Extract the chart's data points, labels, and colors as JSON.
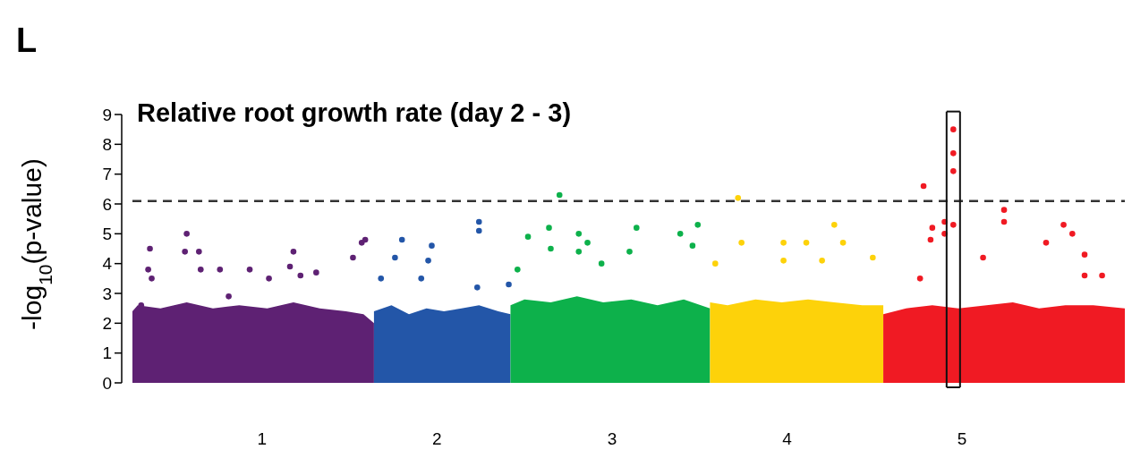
{
  "chart_data": {
    "type": "scatter",
    "title": "Relative root growth rate (day 2 - 3)",
    "ylabel": "-log$_{10}$(p-value)",
    "annotations": [
      "L"
    ],
    "xlim": [
      0.26,
      5.93
    ],
    "xticks": [
      1,
      2,
      3,
      4,
      5
    ],
    "ylim": [
      0,
      9
    ],
    "yticks": [
      0,
      1,
      2,
      3,
      4,
      5,
      6,
      7,
      8,
      9
    ],
    "marker": "circle",
    "ref_lines": [
      {
        "axis": "y",
        "value": 6.1,
        "color": "#333333",
        "line_style": "dashed"
      }
    ],
    "series": [
      {
        "type": "area",
        "marker": "none",
        "color": "#5e2173",
        "x": [
          0.26,
          0.29,
          0.42,
          0.57,
          0.72,
          0.87,
          1.03,
          1.18,
          1.33,
          1.48,
          1.58,
          1.64
        ],
        "values": [
          2.4,
          2.6,
          2.5,
          2.7,
          2.5,
          2.6,
          2.5,
          2.7,
          2.5,
          2.4,
          2.3,
          2.0
        ]
      },
      {
        "type": "area",
        "marker": "none",
        "color": "#2356a8",
        "x": [
          1.64,
          1.74,
          1.84,
          1.94,
          2.04,
          2.14,
          2.24,
          2.35,
          2.42
        ],
        "values": [
          2.4,
          2.6,
          2.3,
          2.5,
          2.4,
          2.5,
          2.6,
          2.4,
          2.3
        ]
      },
      {
        "type": "area",
        "marker": "none",
        "color": "#0db14b",
        "x": [
          2.42,
          2.5,
          2.65,
          2.8,
          2.95,
          3.11,
          3.26,
          3.41,
          3.56
        ],
        "values": [
          2.6,
          2.8,
          2.7,
          2.9,
          2.7,
          2.8,
          2.6,
          2.8,
          2.5
        ]
      },
      {
        "type": "area",
        "marker": "none",
        "color": "#fdd20a",
        "x": [
          3.56,
          3.66,
          3.82,
          3.97,
          4.12,
          4.27,
          4.43,
          4.55
        ],
        "values": [
          2.7,
          2.6,
          2.8,
          2.7,
          2.8,
          2.7,
          2.6,
          2.6
        ]
      },
      {
        "type": "area",
        "marker": "none",
        "color": "#f01a23",
        "x": [
          4.55,
          4.68,
          4.83,
          4.98,
          5.14,
          5.29,
          5.44,
          5.59,
          5.75,
          5.93
        ],
        "values": [
          2.3,
          2.5,
          2.6,
          2.5,
          2.6,
          2.7,
          2.5,
          2.6,
          2.6,
          2.5
        ]
      },
      {
        "color": "#5e2173",
        "x": [
          0.31,
          0.36,
          0.35,
          0.37,
          0.57,
          0.56,
          0.64,
          0.65,
          0.76,
          0.93,
          1.18,
          1.16,
          1.22,
          1.52,
          1.57,
          1.59,
          1.31,
          1.04,
          0.81
        ],
        "values": [
          2.6,
          4.5,
          3.8,
          3.5,
          5.0,
          4.4,
          4.4,
          3.8,
          3.8,
          3.8,
          4.4,
          3.9,
          3.6,
          4.2,
          4.7,
          4.8,
          3.7,
          3.5,
          2.9
        ]
      },
      {
        "color": "#2356a8",
        "x": [
          1.8,
          1.76,
          1.97,
          1.95,
          1.91,
          2.24,
          2.24,
          1.68,
          2.23,
          2.41
        ],
        "values": [
          4.8,
          4.2,
          4.6,
          4.1,
          3.5,
          5.4,
          5.1,
          3.5,
          3.2,
          3.3
        ]
      },
      {
        "color": "#0db14b",
        "x": [
          2.7,
          2.52,
          2.64,
          2.81,
          2.86,
          3.14,
          3.39,
          3.49,
          3.46,
          2.65,
          2.81,
          3.1,
          2.46,
          2.94
        ],
        "values": [
          6.3,
          4.9,
          5.2,
          5.0,
          4.7,
          5.2,
          5.0,
          5.3,
          4.6,
          4.5,
          4.4,
          4.4,
          3.8,
          4.0
        ]
      },
      {
        "color": "#fdd20a",
        "x": [
          3.72,
          3.74,
          3.98,
          4.11,
          4.27,
          4.32,
          3.59,
          4.2,
          4.49,
          3.98
        ],
        "values": [
          6.2,
          4.7,
          4.7,
          4.7,
          5.3,
          4.7,
          4.0,
          4.1,
          4.2,
          4.1
        ]
      },
      {
        "color": "#f01a23",
        "x": [
          4.95,
          4.95,
          4.95,
          4.78,
          4.95,
          4.9,
          4.83,
          4.82,
          4.9,
          5.24,
          5.24,
          5.58,
          5.63,
          5.48,
          5.7,
          5.12,
          4.76,
          5.7,
          5.8
        ],
        "values": [
          8.5,
          7.7,
          7.1,
          6.6,
          5.3,
          5.4,
          5.2,
          4.8,
          5.0,
          5.8,
          5.4,
          5.3,
          5.0,
          4.7,
          4.3,
          4.2,
          3.5,
          3.6,
          3.6
        ]
      }
    ]
  }
}
